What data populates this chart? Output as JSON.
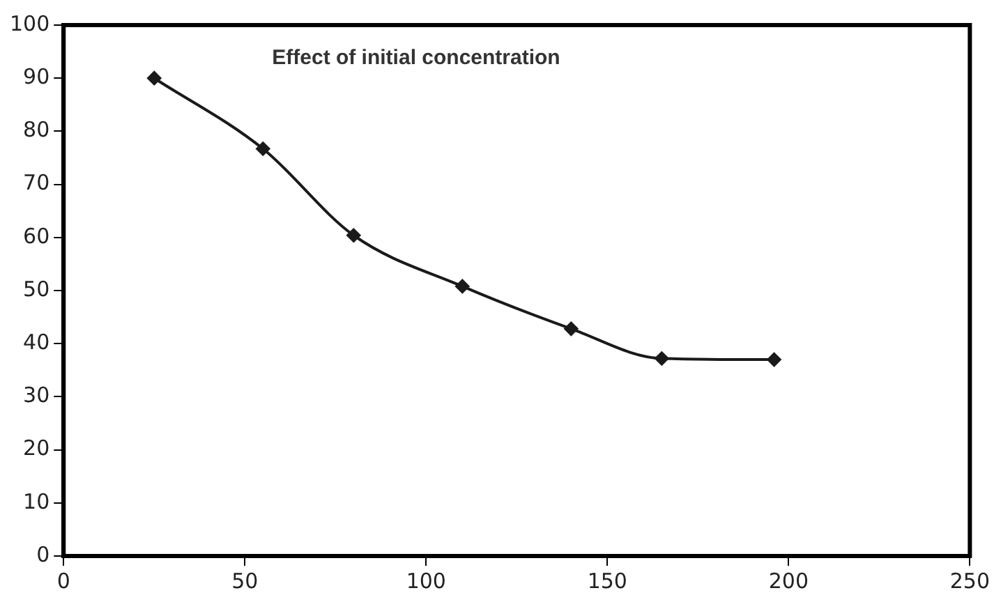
{
  "chart_data": {
    "type": "line",
    "title": "Effect of initial concentration",
    "x": [
      25,
      55,
      80,
      110,
      140,
      165,
      196
    ],
    "series": [
      {
        "color": "#1a1a1a",
        "values": [
          90,
          76.7,
          60.4,
          50.8,
          42.8,
          37.2,
          37
        ]
      }
    ],
    "xlim": [
      0,
      250
    ],
    "xticks": [
      0,
      50,
      100,
      150,
      200,
      250
    ],
    "ylim": [
      0,
      100
    ],
    "yticks": [
      0,
      10,
      20,
      30,
      40,
      50,
      60,
      70,
      80,
      90,
      100
    ],
    "grid": false,
    "legend": false,
    "marker": "diamond",
    "line_style": "solid"
  }
}
